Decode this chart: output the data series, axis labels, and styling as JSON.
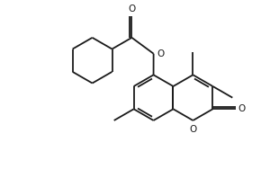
{
  "bg_color": "#ffffff",
  "line_color": "#1a1a1a",
  "line_width": 1.3,
  "figsize": [
    2.9,
    1.98
  ],
  "dpi": 100,
  "xlim": [
    0,
    10
  ],
  "ylim": [
    0,
    6.83
  ]
}
